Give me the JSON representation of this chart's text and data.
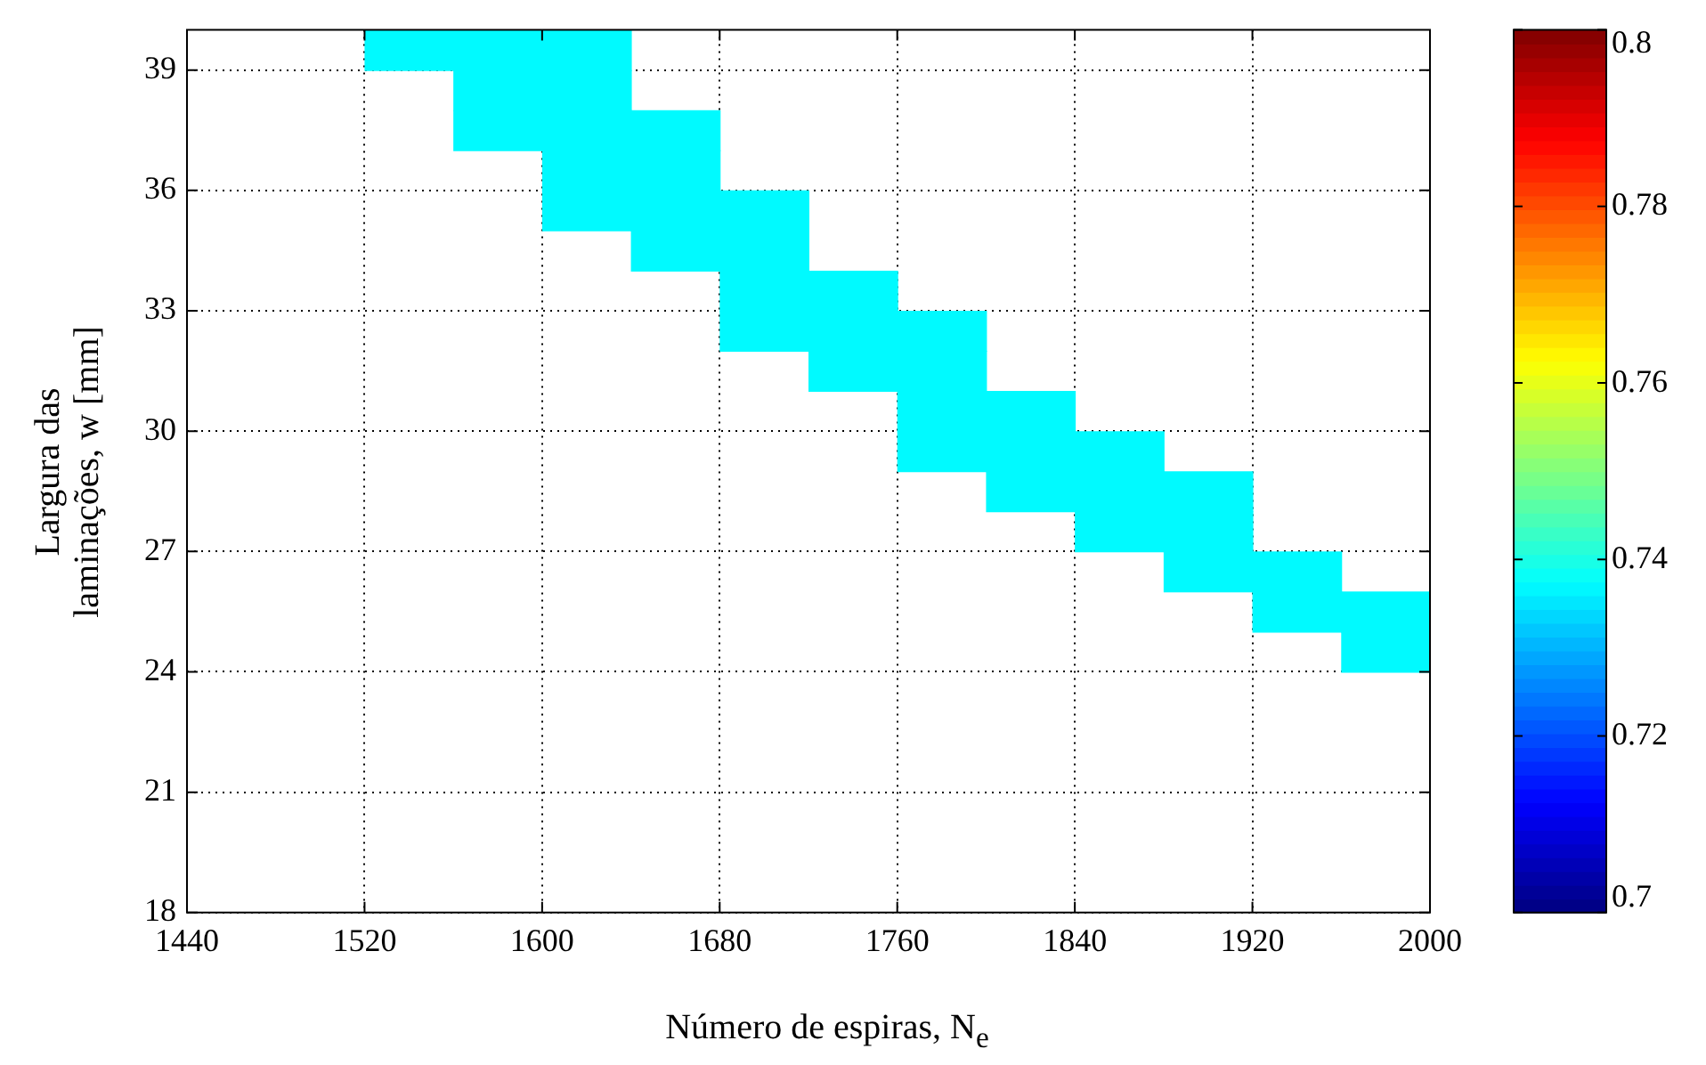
{
  "chart_data": {
    "type": "heatmap",
    "xlabel": "Número de espiras, N$_{e}$",
    "ylabel": "Largura das laminações, w [mm]",
    "x": [
      1540,
      1580,
      1620,
      1660,
      1700,
      1740,
      1780,
      1820,
      1860,
      1900,
      1940,
      1980
    ],
    "y": [
      39.5,
      38.5,
      37.5,
      36.5,
      35.5,
      34.5,
      33.5,
      32.5,
      31.5,
      30.5,
      29.5,
      28.5,
      27.5,
      26.5,
      25.5,
      24.5
    ],
    "cells": [
      [
        0.737,
        0.737,
        0.737,
        null,
        null,
        null,
        null,
        null,
        null,
        null,
        null,
        null
      ],
      [
        null,
        0.737,
        0.737,
        null,
        null,
        null,
        null,
        null,
        null,
        null,
        null,
        null
      ],
      [
        null,
        0.737,
        0.737,
        0.737,
        null,
        null,
        null,
        null,
        null,
        null,
        null,
        null
      ],
      [
        null,
        null,
        0.737,
        0.737,
        null,
        null,
        null,
        null,
        null,
        null,
        null,
        null
      ],
      [
        null,
        null,
        0.737,
        0.737,
        0.737,
        null,
        null,
        null,
        null,
        null,
        null,
        null
      ],
      [
        null,
        null,
        null,
        0.737,
        0.737,
        null,
        null,
        null,
        null,
        null,
        null,
        null
      ],
      [
        null,
        null,
        null,
        null,
        0.737,
        0.737,
        null,
        null,
        null,
        null,
        null,
        null
      ],
      [
        null,
        null,
        null,
        null,
        0.737,
        0.737,
        0.737,
        null,
        null,
        null,
        null,
        null
      ],
      [
        null,
        null,
        null,
        null,
        null,
        0.737,
        0.737,
        null,
        null,
        null,
        null,
        null
      ],
      [
        null,
        null,
        null,
        null,
        null,
        null,
        0.737,
        0.737,
        null,
        null,
        null,
        null
      ],
      [
        null,
        null,
        null,
        null,
        null,
        null,
        0.737,
        0.737,
        0.737,
        null,
        null,
        null
      ],
      [
        null,
        null,
        null,
        null,
        null,
        null,
        null,
        0.737,
        0.737,
        0.737,
        null,
        null
      ],
      [
        null,
        null,
        null,
        null,
        null,
        null,
        null,
        null,
        0.737,
        0.737,
        null,
        null
      ],
      [
        null,
        null,
        null,
        null,
        null,
        null,
        null,
        null,
        null,
        0.737,
        0.737,
        null
      ],
      [
        null,
        null,
        null,
        null,
        null,
        null,
        null,
        null,
        null,
        null,
        0.737,
        0.737
      ],
      [
        null,
        null,
        null,
        null,
        null,
        null,
        null,
        null,
        null,
        null,
        null,
        0.737
      ]
    ],
    "xlim": [
      1440,
      2000
    ],
    "xticks": [
      1440,
      1520,
      1600,
      1680,
      1760,
      1840,
      1920,
      2000
    ],
    "ylim": [
      18,
      40
    ],
    "yticks": [
      18,
      21,
      24,
      27,
      30,
      33,
      36,
      39
    ],
    "clim": [
      0.7,
      0.8
    ],
    "cticks": [
      0.7,
      0.72,
      0.74,
      0.76,
      0.78,
      0.8
    ],
    "grid": true
  }
}
